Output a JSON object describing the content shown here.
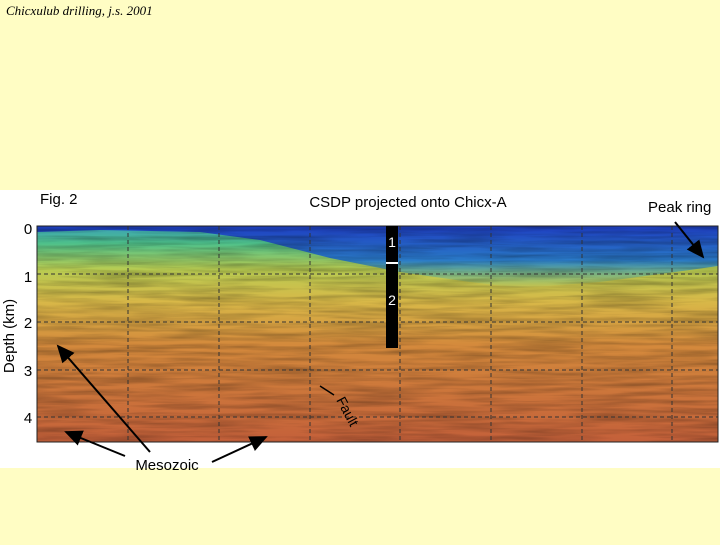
{
  "header": {
    "title": "Chicxulub drilling, j.s. 2001"
  },
  "figure": {
    "label": "Fig. 2",
    "title": "CSDP projected onto Chicx-A",
    "y_axis_label": "Depth (km)",
    "y_ticks": [
      "0",
      "1",
      "2",
      "3",
      "4"
    ],
    "borehole_units": [
      "1",
      "2"
    ],
    "annotations": {
      "peak_ring": "Peak ring",
      "mesozoic": "Mesozoic",
      "fault": "Fault"
    }
  }
}
